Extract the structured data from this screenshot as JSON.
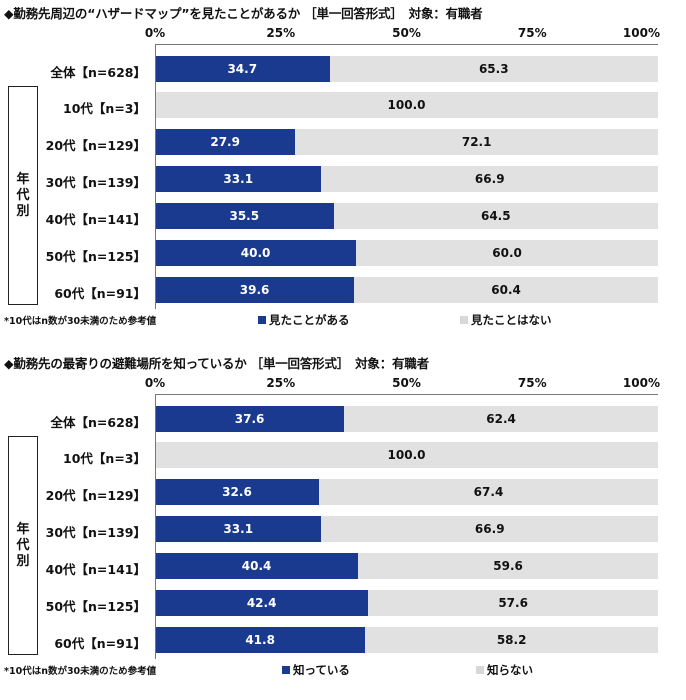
{
  "chart_data": [
    {
      "type": "bar",
      "title": "◆勤務先周辺の“ハザードマップ”を見たことがあるか ［単一回答形式］　対象：有職者",
      "xlim": [
        0,
        100
      ],
      "ticks": [
        "0%",
        "25%",
        "50%",
        "75%",
        "100%"
      ],
      "categories": [
        "全体【n=628】",
        "10代【n=3】",
        "20代【n=129】",
        "30代【n=139】",
        "40代【n=141】",
        "50代【n=125】",
        "60代【n=91】"
      ],
      "group_label": "年代別",
      "series": [
        {
          "name": "見たことがある",
          "color": "#1a3a8f",
          "values": [
            34.7,
            0,
            27.9,
            33.1,
            35.5,
            40.0,
            39.6
          ]
        },
        {
          "name": "見たことはない",
          "color": "#e1e1e1",
          "values": [
            65.3,
            100.0,
            72.1,
            66.9,
            64.5,
            60.0,
            60.4
          ]
        }
      ],
      "note": "*10代はn数が30未満のため参考値",
      "legend_position": "bottom"
    },
    {
      "type": "bar",
      "title": "◆勤務先の最寄りの避難場所を知っているか ［単一回答形式］　対象：有職者",
      "xlim": [
        0,
        100
      ],
      "ticks": [
        "0%",
        "25%",
        "50%",
        "75%",
        "100%"
      ],
      "categories": [
        "全体【n=628】",
        "10代【n=3】",
        "20代【n=129】",
        "30代【n=139】",
        "40代【n=141】",
        "50代【n=125】",
        "60代【n=91】"
      ],
      "group_label": "年代別",
      "series": [
        {
          "name": "知っている",
          "color": "#1a3a8f",
          "values": [
            37.6,
            0,
            32.6,
            33.1,
            40.4,
            42.4,
            41.8
          ]
        },
        {
          "name": "知らない",
          "color": "#e1e1e1",
          "values": [
            62.4,
            100.0,
            67.4,
            66.9,
            59.6,
            57.6,
            58.2
          ]
        }
      ],
      "note": "*10代はn数が30未満のため参考値",
      "legend_position": "bottom"
    }
  ]
}
